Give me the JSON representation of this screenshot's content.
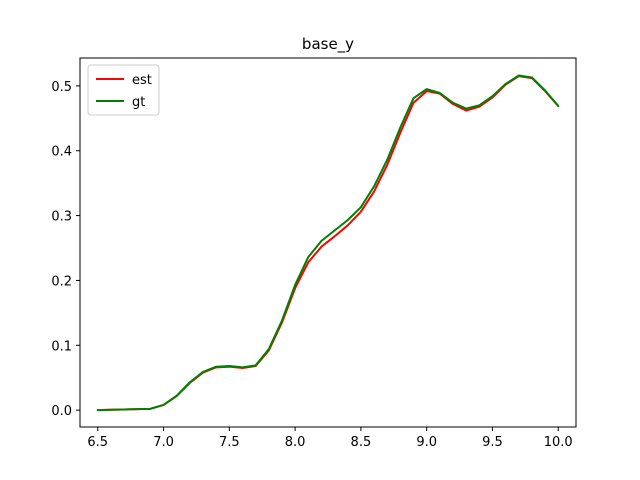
{
  "chart_data": {
    "type": "line",
    "title": "base_y",
    "xlabel": "",
    "ylabel": "",
    "xlim": [
      6.365,
      10.135
    ],
    "ylim": [
      -0.026,
      0.543
    ],
    "xticks": [
      6.5,
      7.0,
      7.5,
      8.0,
      8.5,
      9.0,
      9.5,
      10.0
    ],
    "xtick_labels": [
      "6.5",
      "7.0",
      "7.5",
      "8.0",
      "8.5",
      "9.0",
      "9.5",
      "10.0"
    ],
    "yticks": [
      0.0,
      0.1,
      0.2,
      0.3,
      0.4,
      0.5
    ],
    "ytick_labels": [
      "0.0",
      "0.1",
      "0.2",
      "0.3",
      "0.4",
      "0.5"
    ],
    "grid": false,
    "legend": "upper-left",
    "series": [
      {
        "name": "est",
        "color": "#ff0000",
        "x": [
          6.5,
          6.6,
          6.7,
          6.8,
          6.9,
          7.0,
          7.1,
          7.2,
          7.3,
          7.4,
          7.5,
          7.6,
          7.7,
          7.8,
          7.9,
          8.0,
          8.1,
          8.2,
          8.3,
          8.4,
          8.5,
          8.6,
          8.7,
          8.8,
          8.9,
          9.0,
          9.1,
          9.2,
          9.3,
          9.4,
          9.5,
          9.6,
          9.7,
          9.8,
          9.9,
          10.0
        ],
        "y": [
          0.0,
          0.0005,
          0.001,
          0.0015,
          0.002,
          0.008,
          0.022,
          0.042,
          0.058,
          0.066,
          0.067,
          0.065,
          0.068,
          0.092,
          0.135,
          0.188,
          0.228,
          0.252,
          0.268,
          0.285,
          0.306,
          0.337,
          0.378,
          0.428,
          0.474,
          0.492,
          0.488,
          0.472,
          0.462,
          0.468,
          0.482,
          0.502,
          0.515,
          0.512,
          0.492,
          0.469
        ]
      },
      {
        "name": "gt",
        "color": "#008000",
        "x": [
          6.5,
          6.6,
          6.7,
          6.8,
          6.9,
          7.0,
          7.1,
          7.2,
          7.3,
          7.4,
          7.5,
          7.6,
          7.7,
          7.8,
          7.9,
          8.0,
          8.1,
          8.2,
          8.3,
          8.4,
          8.5,
          8.6,
          8.7,
          8.8,
          8.9,
          9.0,
          9.1,
          9.2,
          9.3,
          9.4,
          9.5,
          9.6,
          9.7,
          9.8,
          9.9,
          10.0
        ],
        "y": [
          0.0,
          0.0005,
          0.001,
          0.0015,
          0.002,
          0.008,
          0.022,
          0.043,
          0.059,
          0.067,
          0.068,
          0.066,
          0.069,
          0.094,
          0.138,
          0.193,
          0.236,
          0.261,
          0.277,
          0.293,
          0.313,
          0.345,
          0.386,
          0.436,
          0.481,
          0.495,
          0.489,
          0.474,
          0.465,
          0.47,
          0.484,
          0.503,
          0.516,
          0.513,
          0.493,
          0.469
        ]
      }
    ]
  }
}
